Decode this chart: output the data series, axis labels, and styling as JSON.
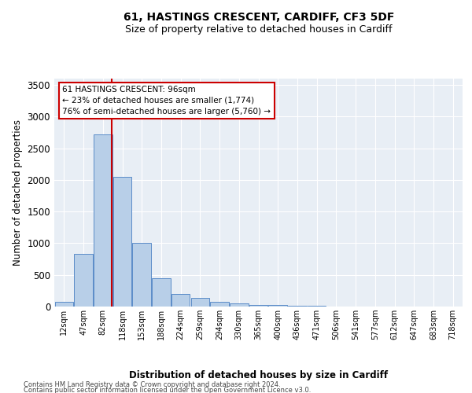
{
  "title1": "61, HASTINGS CRESCENT, CARDIFF, CF3 5DF",
  "title2": "Size of property relative to detached houses in Cardiff",
  "xlabel": "Distribution of detached houses by size in Cardiff",
  "ylabel": "Number of detached properties",
  "categories": [
    "12sqm",
    "47sqm",
    "82sqm",
    "118sqm",
    "153sqm",
    "188sqm",
    "224sqm",
    "259sqm",
    "294sqm",
    "330sqm",
    "365sqm",
    "400sqm",
    "436sqm",
    "471sqm",
    "506sqm",
    "541sqm",
    "577sqm",
    "612sqm",
    "647sqm",
    "683sqm",
    "718sqm"
  ],
  "bar_values": [
    70,
    830,
    2720,
    2050,
    1000,
    450,
    200,
    140,
    70,
    55,
    30,
    20,
    15,
    10,
    5,
    5,
    0,
    0,
    0,
    0,
    0
  ],
  "bar_color": "#b8cfe8",
  "bar_edge_color": "#5b8cc8",
  "vline_color": "#cc0000",
  "ylim": [
    0,
    3600
  ],
  "yticks": [
    0,
    500,
    1000,
    1500,
    2000,
    2500,
    3000,
    3500
  ],
  "annotation_line1": "61 HASTINGS CRESCENT: 96sqm",
  "annotation_line2": "← 23% of detached houses are smaller (1,774)",
  "annotation_line3": "76% of semi-detached houses are larger (5,760) →",
  "annotation_box_color": "#ffffff",
  "annotation_border_color": "#cc0000",
  "footer1": "Contains HM Land Registry data © Crown copyright and database right 2024.",
  "footer2": "Contains public sector information licensed under the Open Government Licence v3.0.",
  "bg_color": "#ffffff",
  "plot_bg_color": "#e8eef5",
  "grid_color": "#ffffff",
  "title1_fontsize": 10,
  "title2_fontsize": 9
}
